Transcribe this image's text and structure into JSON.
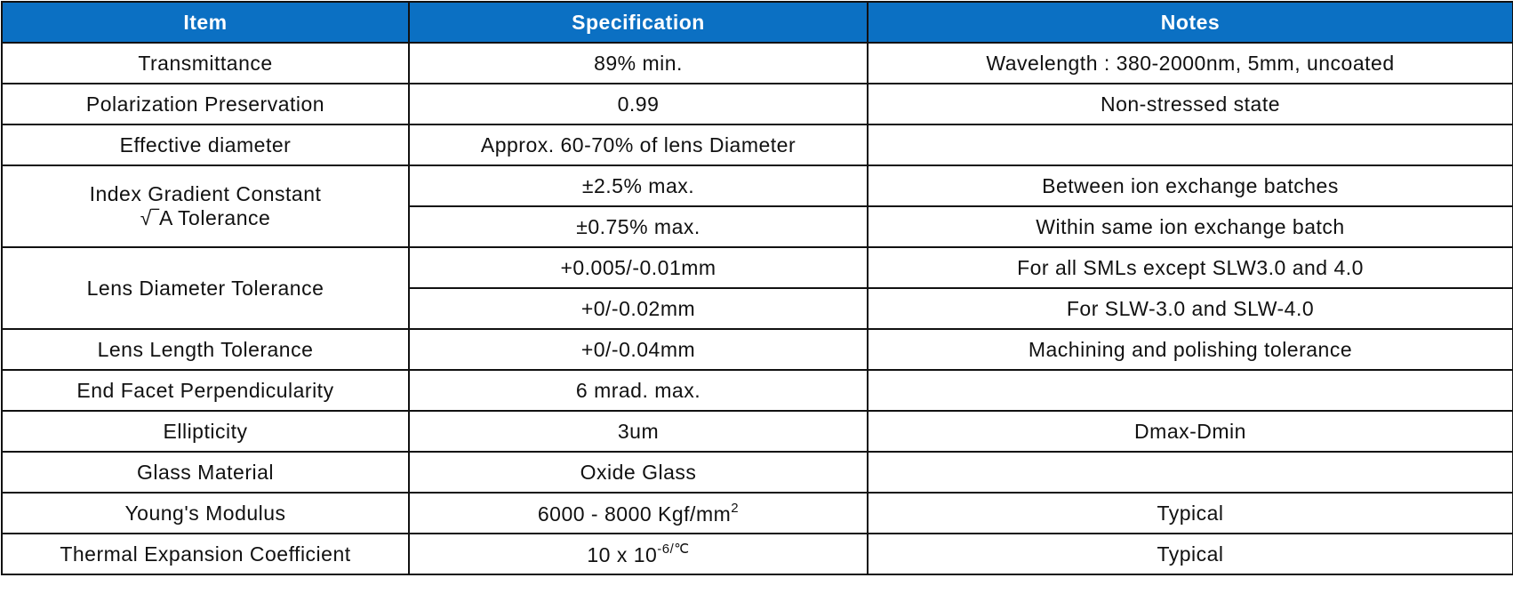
{
  "table": {
    "header": [
      "Item",
      "Specification",
      "Notes"
    ],
    "rows": [
      {
        "item": "Transmittance",
        "specs": [
          {
            "spec": "89% min.",
            "notes": "Wavelength : 380-2000nm, 5mm, uncoated"
          }
        ]
      },
      {
        "item": "Polarization Preservation",
        "specs": [
          {
            "spec": "0.99",
            "notes": "Non-stressed state"
          }
        ]
      },
      {
        "item": "Effective diameter",
        "specs": [
          {
            "spec": "Approx. 60-70% of lens Diameter"
          }
        ]
      },
      {
        "item": [
          "Index Gradient Constant",
          "√‾A Tolerance"
        ],
        "specs": [
          {
            "spec": "±2.5% max.",
            "notes": "Between ion exchange batches"
          },
          {
            "spec": "±0.75% max.",
            "notes": "Within same ion exchange batch"
          }
        ]
      },
      {
        "item": "Lens Diameter Tolerance",
        "specs": [
          {
            "spec": "+0.005/-0.01mm",
            "notes": "For all SMLs except SLW3.0 and 4.0"
          },
          {
            "spec": "+0/-0.02mm",
            "notes": "For SLW-3.0 and SLW-4.0"
          }
        ]
      },
      {
        "item": "Lens Length Tolerance",
        "specs": [
          {
            "spec": "+0/-0.04mm",
            "notes": "Machining and polishing tolerance"
          }
        ]
      },
      {
        "item": "End Facet Perpendicularity",
        "specs": [
          {
            "spec": "6 mrad. max."
          }
        ]
      },
      {
        "item": "Ellipticity",
        "specs": [
          {
            "spec": "3um",
            "notes": "Dmax-Dmin"
          }
        ]
      },
      {
        "item": "Glass Material",
        "specs": [
          {
            "spec": "Oxide Glass"
          }
        ]
      },
      {
        "item": "Young's Modulus",
        "specs": [
          {
            "spec": "6000 - 8000 Kgf/mm",
            "sup": "2",
            "notes": "Typical"
          }
        ]
      },
      {
        "item": "Thermal Expansion Coefficient",
        "specs": [
          {
            "spec": "10 x 10",
            "sup": "-6/℃",
            "notes": "Typical"
          }
        ]
      }
    ]
  }
}
